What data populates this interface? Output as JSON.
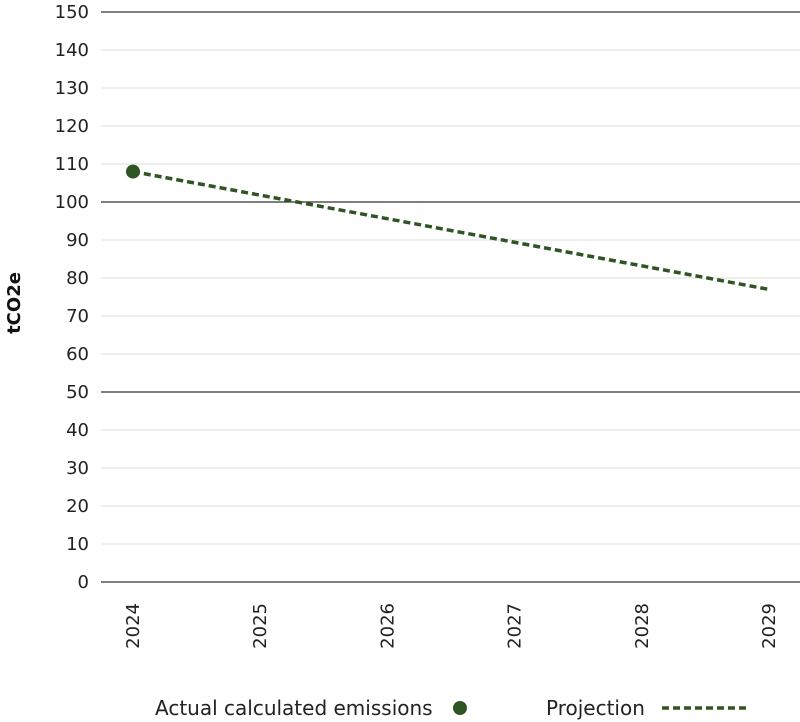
{
  "chart_data": {
    "type": "line",
    "ylabel": "tCO2e",
    "xlabel": "",
    "title": "",
    "ylim": [
      0,
      150
    ],
    "ytick_step": 10,
    "major_gridlines": [
      0,
      50,
      100,
      150
    ],
    "categories": [
      "2024",
      "2025",
      "2026",
      "2027",
      "2028",
      "2029"
    ],
    "series": [
      {
        "name": "Actual calculated emissions",
        "kind": "marker",
        "color": "#2f5524",
        "x": [
          "2024"
        ],
        "values": [
          108
        ]
      },
      {
        "name": "Projection",
        "kind": "dashed-line",
        "color": "#2f5524",
        "x": [
          "2024",
          "2029"
        ],
        "values": [
          108,
          77
        ]
      }
    ],
    "legend": {
      "position": "bottom",
      "items": [
        {
          "label": "Actual calculated emissions",
          "symbol": "dot"
        },
        {
          "label": "Projection",
          "symbol": "dashed-line"
        }
      ]
    },
    "colors": {
      "series": "#2f5524",
      "major_grid": "#333333",
      "minor_grid": "#dcdcdc",
      "text": "#222222"
    }
  }
}
